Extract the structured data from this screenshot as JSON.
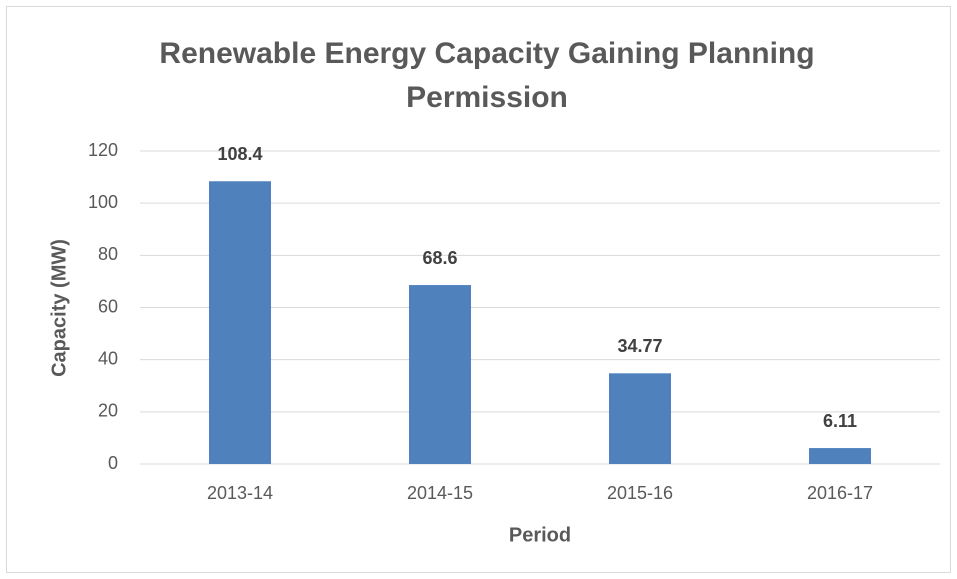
{
  "chart_data": {
    "type": "bar",
    "title": "Renewable Energy Capacity Gaining Planning Permission",
    "x_label": "Period",
    "y_label": "Capacity (MW)",
    "categories": [
      "2013-14",
      "2014-15",
      "2015-16",
      "2016-17"
    ],
    "values": [
      108.4,
      68.6,
      34.77,
      6.11
    ],
    "color": "#4f81bd",
    "ylim": [
      0,
      120
    ],
    "yticks": [
      0,
      20,
      40,
      60,
      80,
      100,
      120
    ],
    "grid": true
  }
}
